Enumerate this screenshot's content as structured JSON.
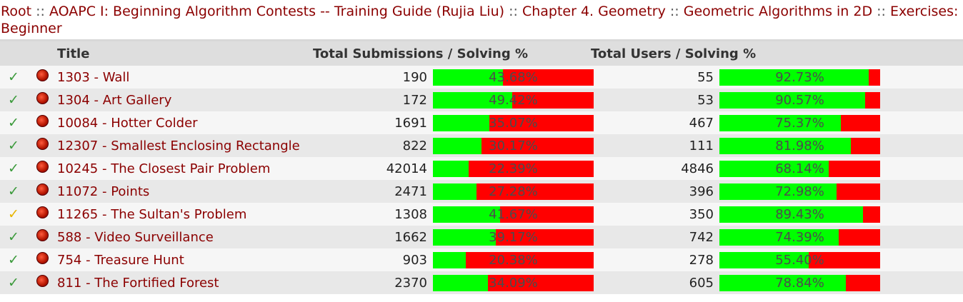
{
  "breadcrumb": [
    "Root",
    "AOAPC I: Beginning Algorithm Contests -- Training Guide (Rujia Liu)",
    "Chapter 4. Geometry",
    "Geometric Algorithms in 2D",
    "Exercises: Beginner"
  ],
  "breadcrumb_sep": "::",
  "table": {
    "headers": {
      "title": "Title",
      "submissions": "Total Submissions / Solving %",
      "users": "Total Users / Solving %"
    },
    "rows": [
      {
        "status": "check-icon",
        "title": "1303 - Wall",
        "submissions": "190",
        "sub_pct": "43.68%",
        "sub_frac": 0.4368,
        "users": "55",
        "user_pct": "92.73%",
        "user_frac": 0.9273
      },
      {
        "status": "check-icon",
        "title": "1304 - Art Gallery",
        "submissions": "172",
        "sub_pct": "49.42%",
        "sub_frac": 0.4942,
        "users": "53",
        "user_pct": "90.57%",
        "user_frac": 0.9057
      },
      {
        "status": "check-icon",
        "title": "10084 - Hotter Colder",
        "submissions": "1691",
        "sub_pct": "35.07%",
        "sub_frac": 0.3507,
        "users": "467",
        "user_pct": "75.37%",
        "user_frac": 0.7537
      },
      {
        "status": "check-icon",
        "title": "12307 - Smallest Enclosing Rectangle",
        "submissions": "822",
        "sub_pct": "30.17%",
        "sub_frac": 0.3017,
        "users": "111",
        "user_pct": "81.98%",
        "user_frac": 0.8198
      },
      {
        "status": "check-icon",
        "title": "10245 - The Closest Pair Problem",
        "submissions": "42014",
        "sub_pct": "22.39%",
        "sub_frac": 0.2239,
        "users": "4846",
        "user_pct": "68.14%",
        "user_frac": 0.6814
      },
      {
        "status": "check-icon",
        "title": "11072 - Points",
        "submissions": "2471",
        "sub_pct": "27.28%",
        "sub_frac": 0.2728,
        "users": "396",
        "user_pct": "72.98%",
        "user_frac": 0.7298
      },
      {
        "status": "partial-check-icon",
        "title": "11265 - The Sultan's Problem",
        "submissions": "1308",
        "sub_pct": "41.67%",
        "sub_frac": 0.4167,
        "users": "350",
        "user_pct": "89.43%",
        "user_frac": 0.8943
      },
      {
        "status": "check-icon",
        "title": "588 - Video Surveillance",
        "submissions": "1662",
        "sub_pct": "39.17%",
        "sub_frac": 0.3917,
        "users": "742",
        "user_pct": "74.39%",
        "user_frac": 0.7439
      },
      {
        "status": "check-icon",
        "title": "754 - Treasure Hunt",
        "submissions": "903",
        "sub_pct": "20.38%",
        "sub_frac": 0.2038,
        "users": "278",
        "user_pct": "55.40%",
        "user_frac": 0.554
      },
      {
        "status": "check-icon",
        "title": "811 - The Fortified Forest",
        "submissions": "2370",
        "sub_pct": "34.09%",
        "sub_frac": 0.3409,
        "users": "605",
        "user_pct": "78.84%",
        "user_frac": 0.7884
      }
    ]
  },
  "colors": {
    "solved": "#00ff00",
    "unsolved": "#ff0000",
    "link": "#8b0000"
  }
}
